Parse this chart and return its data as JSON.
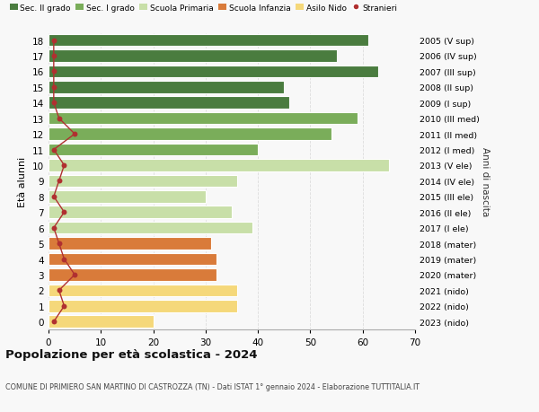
{
  "ages": [
    18,
    17,
    16,
    15,
    14,
    13,
    12,
    11,
    10,
    9,
    8,
    7,
    6,
    5,
    4,
    3,
    2,
    1,
    0
  ],
  "bar_values": [
    61,
    55,
    63,
    45,
    46,
    59,
    54,
    40,
    65,
    36,
    30,
    35,
    39,
    31,
    32,
    32,
    36,
    36,
    20
  ],
  "stranieri_values": [
    1,
    1,
    1,
    1,
    1,
    2,
    5,
    1,
    3,
    2,
    1,
    3,
    1,
    2,
    3,
    5,
    2,
    3,
    1
  ],
  "right_labels": [
    "2005 (V sup)",
    "2006 (IV sup)",
    "2007 (III sup)",
    "2008 (II sup)",
    "2009 (I sup)",
    "2010 (III med)",
    "2011 (II med)",
    "2012 (I med)",
    "2013 (V ele)",
    "2014 (IV ele)",
    "2015 (III ele)",
    "2016 (II ele)",
    "2017 (I ele)",
    "2018 (mater)",
    "2019 (mater)",
    "2020 (mater)",
    "2021 (nido)",
    "2022 (nido)",
    "2023 (nido)"
  ],
  "bar_colors": [
    "#4a7c3f",
    "#4a7c3f",
    "#4a7c3f",
    "#4a7c3f",
    "#4a7c3f",
    "#7aad5a",
    "#7aad5a",
    "#7aad5a",
    "#c8dfa8",
    "#c8dfa8",
    "#c8dfa8",
    "#c8dfa8",
    "#c8dfa8",
    "#d97b3a",
    "#d97b3a",
    "#d97b3a",
    "#f5d87a",
    "#f5d87a",
    "#f5d87a"
  ],
  "legend_labels": [
    "Sec. II grado",
    "Sec. I grado",
    "Scuola Primaria",
    "Scuola Infanzia",
    "Asilo Nido",
    "Stranieri"
  ],
  "legend_colors": [
    "#4a7c3f",
    "#7aad5a",
    "#c8dfa8",
    "#d97b3a",
    "#f5d87a",
    "#c0392b"
  ],
  "stranieri_color": "#b03030",
  "title": "Popolazione per età scolastica - 2024",
  "subtitle": "COMUNE DI PRIMIERO SAN MARTINO DI CASTROZZA (TN) - Dati ISTAT 1° gennaio 2024 - Elaborazione TUTTITALIA.IT",
  "ylabel_left": "Età alunni",
  "ylabel_right": "Anni di nascita",
  "xlim": [
    0,
    70
  ],
  "xticks": [
    0,
    10,
    20,
    30,
    40,
    50,
    60,
    70
  ],
  "bg_color": "#f8f8f8",
  "grid_color": "#dddddd",
  "bar_height": 0.78
}
